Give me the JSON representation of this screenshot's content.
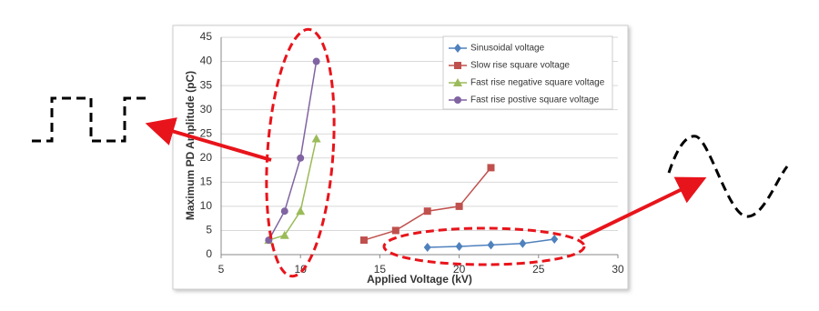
{
  "chart_data": {
    "type": "line",
    "xlabel": "Applied Voltage (kV)",
    "ylabel": "Maximum PD Amplitude (pC)",
    "xlim": [
      5,
      30
    ],
    "xticks": [
      5,
      10,
      15,
      20,
      25,
      30
    ],
    "ylim": [
      0,
      45
    ],
    "yticks": [
      0,
      5,
      10,
      15,
      20,
      25,
      30,
      35,
      40,
      45
    ],
    "grid": true,
    "legend": "upper right",
    "series": [
      {
        "name": "Sinusoidal voltage",
        "color": "#4f81bd",
        "marker": "diamond",
        "x": [
          18,
          20,
          22,
          24,
          26
        ],
        "values": [
          1.5,
          1.7,
          2,
          2.3,
          3.2
        ]
      },
      {
        "name": "Slow rise square voltage",
        "color": "#c0504d",
        "marker": "square",
        "x": [
          14,
          16,
          18,
          20,
          22
        ],
        "values": [
          3,
          5,
          9,
          10,
          18
        ]
      },
      {
        "name": "Fast rise negative square voltage",
        "color": "#9bbb59",
        "marker": "triangle",
        "x": [
          8,
          9,
          10,
          11
        ],
        "values": [
          3,
          4,
          9,
          24
        ]
      },
      {
        "name": "Fast rise postive square voltage",
        "color": "#8064a2",
        "marker": "circle",
        "x": [
          8,
          9,
          10,
          11
        ],
        "values": [
          3,
          9,
          20,
          40
        ]
      }
    ]
  }
}
